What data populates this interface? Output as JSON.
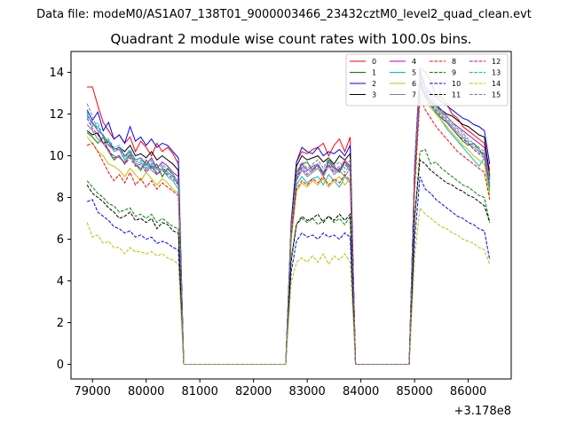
{
  "chart_data": {
    "type": "line",
    "suptitle": "Data file: modeM0/AS1A07_138T01_9000003466_23432cztM0_level2_quad_clean.evt",
    "title": "Quadrant 2 module wise count rates with 100.0s bins.",
    "xlabel": "",
    "ylabel": "",
    "x_offset_label": "+3.178e8",
    "xlim": [
      78600,
      86800
    ],
    "ylim": [
      -0.7,
      15.0
    ],
    "x_ticks": [
      79000,
      80000,
      81000,
      82000,
      83000,
      84000,
      85000,
      86000
    ],
    "x_tick_labels": [
      "79000",
      "80000",
      "81000",
      "82000",
      "83000",
      "84000",
      "85000",
      "86000"
    ],
    "y_ticks": [
      0,
      2,
      4,
      6,
      8,
      10,
      12,
      14
    ],
    "y_tick_labels": [
      "0",
      "2",
      "4",
      "6",
      "8",
      "10",
      "12",
      "14"
    ],
    "legend_position": "top-right",
    "segments": [
      {
        "start": 78900,
        "end": 80600,
        "step": 100
      },
      {
        "start": 82700,
        "end": 83800,
        "step": 100
      },
      {
        "start": 85000,
        "end": 86400,
        "step": 100
      }
    ],
    "gaps": [
      {
        "start": 80600,
        "end": 82700,
        "x": [
          80700,
          82600
        ]
      },
      {
        "start": 83800,
        "end": 85000,
        "x": [
          83900,
          84900
        ]
      }
    ],
    "series": [
      {
        "name": "0",
        "color": "#ff0000",
        "dash": false,
        "segments": [
          [
            13.3,
            13.3,
            12.4,
            11.6,
            11.2,
            10.8,
            11.0,
            10.6,
            10.9,
            10.2,
            10.7,
            10.4,
            10.0,
            10.6,
            10.2,
            10.4,
            10.1,
            9.6
          ],
          [
            6.6,
            9.7,
            10.2,
            10.1,
            10.3,
            10.4,
            10.6,
            10.0,
            10.5,
            10.8,
            10.2,
            10.9
          ],
          [
            9.3,
            14.2,
            14.0,
            13.6,
            12.9,
            12.8,
            12.5,
            12.0,
            11.8,
            11.4,
            11.2,
            11.0,
            10.8,
            10.6,
            9.3
          ]
        ]
      },
      {
        "name": "1",
        "color": "#008000",
        "dash": false,
        "segments": [
          [
            11.1,
            10.9,
            10.6,
            10.9,
            10.2,
            9.8,
            10.0,
            9.6,
            10.1,
            9.6,
            9.3,
            9.8,
            9.4,
            9.6,
            9.0,
            9.4,
            9.1,
            8.6
          ],
          [
            6.4,
            9.2,
            9.6,
            9.7,
            9.3,
            9.6,
            9.1,
            9.8,
            9.5,
            9.2,
            9.7,
            9.4
          ],
          [
            8.9,
            13.4,
            12.8,
            12.4,
            12.1,
            11.8,
            11.6,
            11.3,
            11.0,
            10.7,
            10.5,
            10.6,
            10.3,
            10.0,
            8.5
          ]
        ]
      },
      {
        "name": "2",
        "color": "#0000ff",
        "dash": false,
        "segments": [
          [
            12.2,
            11.7,
            12.1,
            11.2,
            11.6,
            10.8,
            11.0,
            10.6,
            11.4,
            10.7,
            10.9,
            10.5,
            10.8,
            10.4,
            10.6,
            10.5,
            10.2,
            9.9
          ],
          [
            6.8,
            9.7,
            10.4,
            10.2,
            10.1,
            10.4,
            10.0,
            10.2,
            10.1,
            10.3,
            10.0,
            10.5
          ],
          [
            9.5,
            14.1,
            13.3,
            13.0,
            12.8,
            12.6,
            12.4,
            12.2,
            12.0,
            11.8,
            11.7,
            11.5,
            11.4,
            11.2,
            9.6
          ]
        ]
      },
      {
        "name": "3",
        "color": "#000000",
        "dash": false,
        "segments": [
          [
            11.2,
            11.0,
            11.1,
            10.6,
            10.7,
            10.3,
            10.4,
            10.2,
            10.5,
            10.0,
            10.1,
            9.9,
            10.2,
            9.8,
            10.0,
            9.8,
            9.6,
            9.3
          ],
          [
            6.6,
            9.5,
            10.0,
            9.8,
            9.9,
            10.0,
            9.7,
            9.9,
            9.6,
            10.0,
            9.8,
            10.1
          ],
          [
            9.2,
            13.6,
            12.9,
            12.6,
            12.4,
            12.2,
            12.0,
            11.9,
            11.7,
            11.5,
            11.4,
            11.2,
            11.0,
            10.9,
            9.0
          ]
        ]
      },
      {
        "name": "4",
        "color": "#bf00bf",
        "dash": false,
        "segments": [
          [
            11.9,
            11.6,
            11.2,
            11.0,
            10.5,
            10.3,
            10.4,
            10.0,
            10.2,
            9.8,
            9.9,
            9.6,
            9.9,
            9.4,
            9.7,
            9.5,
            9.2,
            9.0
          ],
          [
            6.5,
            9.0,
            9.6,
            9.3,
            9.5,
            9.6,
            9.2,
            9.7,
            9.4,
            9.3,
            9.8,
            9.5
          ],
          [
            9.1,
            13.5,
            13.0,
            12.7,
            12.4,
            12.1,
            11.9,
            11.6,
            11.4,
            11.2,
            11.0,
            10.8,
            10.6,
            10.4,
            8.9
          ]
        ]
      },
      {
        "name": "5",
        "color": "#00bfbf",
        "dash": false,
        "segments": [
          [
            12.0,
            11.5,
            11.4,
            10.9,
            10.7,
            10.2,
            10.3,
            9.8,
            10.1,
            9.6,
            9.7,
            9.3,
            9.6,
            9.1,
            9.4,
            9.0,
            8.8,
            8.4
          ],
          [
            6.2,
            8.6,
            9.0,
            8.7,
            8.9,
            9.0,
            8.6,
            9.1,
            8.8,
            8.5,
            9.0,
            8.7
          ],
          [
            8.8,
            13.8,
            13.2,
            12.6,
            12.0,
            11.7,
            11.3,
            11.0,
            10.7,
            10.4,
            10.1,
            9.8,
            9.5,
            9.9,
            8.3
          ]
        ]
      },
      {
        "name": "6",
        "color": "#bfbf00",
        "dash": false,
        "segments": [
          [
            10.9,
            10.6,
            10.2,
            10.0,
            9.6,
            9.5,
            9.3,
            9.0,
            9.4,
            9.1,
            8.8,
            9.2,
            8.9,
            8.6,
            8.9,
            8.7,
            8.4,
            8.2
          ],
          [
            5.9,
            8.3,
            8.7,
            8.5,
            8.8,
            8.6,
            8.9,
            8.5,
            8.8,
            9.0,
            8.6,
            8.9
          ],
          [
            8.4,
            13.0,
            12.6,
            12.3,
            12.0,
            11.7,
            11.4,
            11.1,
            10.8,
            10.5,
            10.3,
            10.0,
            9.8,
            9.6,
            8.1
          ]
        ]
      },
      {
        "name": "7",
        "color": "#808080",
        "dash": false,
        "segments": [
          [
            11.5,
            11.2,
            10.8,
            10.6,
            10.2,
            10.0,
            9.9,
            9.7,
            10.0,
            9.6,
            9.4,
            9.6,
            9.3,
            9.1,
            9.4,
            9.2,
            9.0,
            8.7
          ],
          [
            6.3,
            8.8,
            9.3,
            9.0,
            9.2,
            9.4,
            9.0,
            9.5,
            9.1,
            9.3,
            9.0,
            9.4
          ],
          [
            8.9,
            13.4,
            13.0,
            12.6,
            12.3,
            12.0,
            11.7,
            11.4,
            11.1,
            10.9,
            10.6,
            10.4,
            10.2,
            10.0,
            8.6
          ]
        ]
      },
      {
        "name": "8",
        "color": "#ff0000",
        "dash": true,
        "segments": [
          [
            10.5,
            10.6,
            10.2,
            9.7,
            9.2,
            8.8,
            9.1,
            8.7,
            9.2,
            8.6,
            8.9,
            8.5,
            8.8,
            8.4,
            8.7,
            8.5,
            8.3,
            8.1
          ],
          [
            6.1,
            8.4,
            8.8,
            8.6,
            8.9,
            8.7,
            9.0,
            8.6,
            8.9,
            8.7,
            9.1,
            8.8
          ],
          [
            8.3,
            12.8,
            12.2,
            11.8,
            11.4,
            11.1,
            10.8,
            10.5,
            10.2,
            10.0,
            9.8,
            9.6,
            9.4,
            9.2,
            7.9
          ]
        ]
      },
      {
        "name": "9",
        "color": "#008000",
        "dash": true,
        "segments": [
          [
            8.8,
            8.5,
            8.2,
            8.0,
            7.7,
            7.6,
            7.3,
            7.4,
            7.5,
            7.1,
            7.2,
            7.0,
            7.2,
            6.8,
            7.0,
            6.8,
            6.6,
            6.5
          ],
          [
            5.1,
            6.7,
            7.0,
            6.8,
            7.0,
            6.7,
            6.9,
            7.1,
            6.8,
            7.0,
            6.7,
            7.1
          ],
          [
            6.9,
            10.2,
            10.3,
            9.6,
            9.7,
            9.4,
            9.2,
            9.0,
            8.8,
            8.6,
            8.5,
            8.3,
            8.1,
            8.0,
            6.8
          ]
        ]
      },
      {
        "name": "10",
        "color": "#0000ff",
        "dash": true,
        "segments": [
          [
            7.8,
            7.9,
            7.3,
            7.1,
            6.9,
            6.6,
            6.5,
            6.3,
            6.4,
            6.1,
            6.2,
            6.0,
            6.1,
            5.8,
            5.9,
            5.8,
            5.6,
            5.5
          ],
          [
            4.4,
            5.9,
            6.3,
            6.1,
            6.2,
            6.0,
            6.3,
            6.1,
            6.2,
            6.0,
            6.3,
            6.1
          ],
          [
            5.9,
            9.0,
            8.4,
            8.2,
            7.9,
            7.7,
            7.5,
            7.3,
            7.1,
            7.0,
            6.8,
            6.7,
            6.5,
            6.4,
            5.0
          ]
        ]
      },
      {
        "name": "11",
        "color": "#000000",
        "dash": true,
        "segments": [
          [
            8.6,
            8.2,
            8.0,
            7.8,
            7.5,
            7.3,
            7.0,
            7.1,
            7.3,
            6.9,
            7.0,
            6.8,
            7.0,
            6.5,
            6.8,
            6.7,
            6.4,
            6.3
          ],
          [
            4.9,
            6.7,
            7.1,
            6.9,
            7.0,
            7.2,
            6.8,
            7.1,
            6.9,
            7.2,
            6.9,
            7.2
          ],
          [
            7.0,
            9.8,
            9.6,
            9.3,
            9.1,
            8.9,
            8.7,
            8.6,
            8.4,
            8.3,
            8.1,
            8.0,
            7.8,
            7.6,
            6.8
          ]
        ]
      },
      {
        "name": "12",
        "color": "#bf00bf",
        "dash": true,
        "segments": [
          [
            11.8,
            11.3,
            11.0,
            10.6,
            10.3,
            9.9,
            10.0,
            9.6,
            9.9,
            9.5,
            9.6,
            9.2,
            9.5,
            9.1,
            9.3,
            9.1,
            8.9,
            8.6
          ],
          [
            6.4,
            8.9,
            9.4,
            9.1,
            9.3,
            9.5,
            9.1,
            9.6,
            9.2,
            9.4,
            9.6,
            9.3
          ],
          [
            9.0,
            13.3,
            12.9,
            12.5,
            12.2,
            11.9,
            11.6,
            11.3,
            11.0,
            10.8,
            10.6,
            10.3,
            10.1,
            9.9,
            8.7
          ]
        ]
      },
      {
        "name": "13",
        "color": "#00bfbf",
        "dash": true,
        "segments": [
          [
            12.1,
            11.4,
            11.6,
            10.9,
            10.8,
            10.4,
            10.5,
            10.0,
            10.3,
            9.8,
            9.9,
            9.5,
            9.8,
            9.3,
            9.6,
            9.3,
            9.1,
            8.8
          ],
          [
            6.5,
            9.0,
            9.5,
            9.2,
            9.4,
            9.6,
            9.2,
            9.7,
            9.3,
            9.5,
            9.2,
            9.6
          ],
          [
            9.2,
            13.7,
            13.1,
            12.7,
            12.4,
            12.1,
            11.8,
            11.5,
            11.2,
            11.0,
            10.7,
            10.5,
            10.3,
            10.1,
            8.8
          ]
        ]
      },
      {
        "name": "14",
        "color": "#bfbf00",
        "dash": true,
        "segments": [
          [
            6.8,
            6.1,
            6.2,
            5.8,
            5.9,
            5.6,
            5.6,
            5.3,
            5.6,
            5.4,
            5.4,
            5.3,
            5.4,
            5.2,
            5.3,
            5.1,
            5.0,
            4.8
          ],
          [
            3.9,
            4.9,
            5.1,
            4.9,
            5.2,
            4.9,
            5.3,
            4.8,
            5.2,
            5.0,
            5.3,
            4.9
          ],
          [
            5.1,
            7.5,
            7.2,
            7.0,
            6.8,
            6.6,
            6.5,
            6.3,
            6.2,
            6.0,
            5.9,
            5.8,
            5.6,
            5.5,
            4.8
          ]
        ]
      },
      {
        "name": "15",
        "color": "#808080",
        "dash": true,
        "segments": [
          [
            12.5,
            11.9,
            11.2,
            11.0,
            10.6,
            10.3,
            10.3,
            9.9,
            10.2,
            9.7,
            9.8,
            9.4,
            9.7,
            9.2,
            9.5,
            9.2,
            9.0,
            8.7
          ],
          [
            6.6,
            9.2,
            9.7,
            9.4,
            9.6,
            9.8,
            9.4,
            9.9,
            9.5,
            9.7,
            9.4,
            9.8
          ],
          [
            9.3,
            13.9,
            13.3,
            12.9,
            12.5,
            12.2,
            11.9,
            11.6,
            11.3,
            11.1,
            10.8,
            10.6,
            10.4,
            10.2,
            8.9
          ]
        ]
      }
    ]
  }
}
